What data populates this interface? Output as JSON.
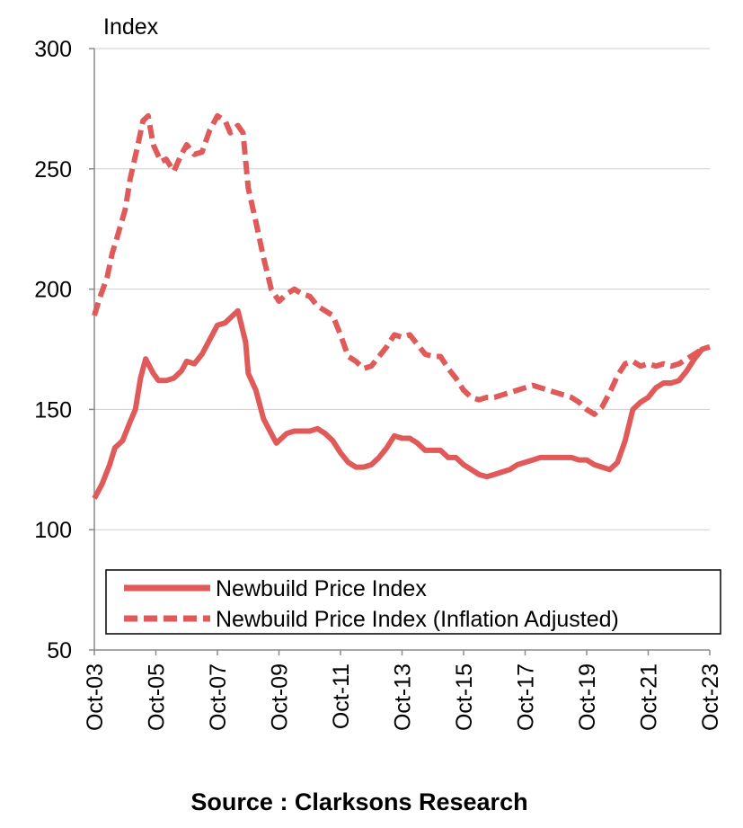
{
  "chart_data": {
    "type": "line",
    "ylabel": "Index",
    "ylim": [
      50,
      300
    ],
    "yticks": [
      50,
      100,
      150,
      200,
      250,
      300
    ],
    "xlim": [
      "Oct-03",
      "Oct-23"
    ],
    "xticks": [
      "Oct-03",
      "Oct-05",
      "Oct-07",
      "Oct-09",
      "Oct-11",
      "Oct-13",
      "Oct-15",
      "Oct-17",
      "Oct-19",
      "Oct-21",
      "Oct-23"
    ],
    "grid": "horizontal",
    "legend_position": "bottom",
    "series": [
      {
        "name": "Newbuild Price Index",
        "style": "solid",
        "color": "#e05a5a",
        "points": [
          [
            "2003-10",
            113
          ],
          [
            "2004-01",
            119
          ],
          [
            "2004-04",
            127
          ],
          [
            "2004-06",
            134
          ],
          [
            "2004-09",
            137
          ],
          [
            "2004-12",
            145
          ],
          [
            "2005-02",
            150
          ],
          [
            "2005-04",
            163
          ],
          [
            "2005-06",
            171
          ],
          [
            "2005-09",
            165
          ],
          [
            "2005-11",
            162
          ],
          [
            "2006-02",
            162
          ],
          [
            "2006-05",
            163
          ],
          [
            "2006-08",
            166
          ],
          [
            "2006-10",
            170
          ],
          [
            "2007-01",
            169
          ],
          [
            "2007-04",
            173
          ],
          [
            "2007-07",
            179
          ],
          [
            "2007-10",
            185
          ],
          [
            "2008-01",
            186
          ],
          [
            "2008-04",
            189
          ],
          [
            "2008-06",
            191
          ],
          [
            "2008-09",
            178
          ],
          [
            "2008-10",
            165
          ],
          [
            "2009-01",
            158
          ],
          [
            "2009-04",
            146
          ],
          [
            "2009-07",
            140
          ],
          [
            "2009-09",
            136
          ],
          [
            "2010-01",
            140
          ],
          [
            "2010-04",
            141
          ],
          [
            "2010-07",
            141
          ],
          [
            "2010-10",
            141
          ],
          [
            "2011-01",
            142
          ],
          [
            "2011-04",
            140
          ],
          [
            "2011-07",
            137
          ],
          [
            "2011-10",
            132
          ],
          [
            "2012-01",
            128
          ],
          [
            "2012-04",
            126
          ],
          [
            "2012-07",
            126
          ],
          [
            "2012-10",
            127
          ],
          [
            "2013-01",
            130
          ],
          [
            "2013-04",
            134
          ],
          [
            "2013-07",
            139
          ],
          [
            "2013-10",
            138
          ],
          [
            "2014-01",
            138
          ],
          [
            "2014-04",
            136
          ],
          [
            "2014-07",
            133
          ],
          [
            "2014-10",
            133
          ],
          [
            "2015-01",
            133
          ],
          [
            "2015-04",
            130
          ],
          [
            "2015-07",
            130
          ],
          [
            "2015-10",
            127
          ],
          [
            "2016-01",
            125
          ],
          [
            "2016-04",
            123
          ],
          [
            "2016-07",
            122
          ],
          [
            "2016-10",
            123
          ],
          [
            "2017-01",
            124
          ],
          [
            "2017-04",
            125
          ],
          [
            "2017-07",
            127
          ],
          [
            "2017-10",
            128
          ],
          [
            "2018-01",
            129
          ],
          [
            "2018-04",
            130
          ],
          [
            "2018-07",
            130
          ],
          [
            "2018-10",
            130
          ],
          [
            "2019-01",
            130
          ],
          [
            "2019-04",
            130
          ],
          [
            "2019-07",
            129
          ],
          [
            "2019-10",
            129
          ],
          [
            "2020-01",
            127
          ],
          [
            "2020-04",
            126
          ],
          [
            "2020-07",
            125
          ],
          [
            "2020-10",
            128
          ],
          [
            "2021-01",
            137
          ],
          [
            "2021-04",
            150
          ],
          [
            "2021-07",
            153
          ],
          [
            "2021-10",
            155
          ],
          [
            "2022-01",
            159
          ],
          [
            "2022-04",
            161
          ],
          [
            "2022-07",
            161
          ],
          [
            "2022-10",
            162
          ],
          [
            "2023-01",
            166
          ],
          [
            "2023-04",
            171
          ],
          [
            "2023-07",
            175
          ],
          [
            "2023-10",
            176
          ]
        ]
      },
      {
        "name": "Newbuild Price Index (Inflation Adjusted)",
        "style": "dashed",
        "color": "#e05a5a",
        "points": [
          [
            "2003-10",
            189
          ],
          [
            "2003-12",
            196
          ],
          [
            "2004-03",
            205
          ],
          [
            "2004-05",
            215
          ],
          [
            "2004-07",
            222
          ],
          [
            "2004-10",
            233
          ],
          [
            "2004-12",
            246
          ],
          [
            "2005-03",
            260
          ],
          [
            "2005-05",
            270
          ],
          [
            "2005-07",
            272
          ],
          [
            "2005-09",
            260
          ],
          [
            "2005-12",
            253
          ],
          [
            "2006-02",
            254
          ],
          [
            "2006-05",
            249
          ],
          [
            "2006-08",
            256
          ],
          [
            "2006-10",
            260
          ],
          [
            "2007-01",
            256
          ],
          [
            "2007-04",
            257
          ],
          [
            "2007-07",
            266
          ],
          [
            "2007-10",
            272
          ],
          [
            "2008-01",
            270
          ],
          [
            "2008-03",
            265
          ],
          [
            "2008-06",
            268
          ],
          [
            "2008-08",
            265
          ],
          [
            "2008-10",
            242
          ],
          [
            "2009-01",
            228
          ],
          [
            "2009-04",
            213
          ],
          [
            "2009-07",
            200
          ],
          [
            "2009-10",
            195
          ],
          [
            "2010-01",
            198
          ],
          [
            "2010-04",
            200
          ],
          [
            "2010-07",
            198
          ],
          [
            "2010-10",
            197
          ],
          [
            "2011-01",
            193
          ],
          [
            "2011-04",
            191
          ],
          [
            "2011-07",
            189
          ],
          [
            "2011-10",
            181
          ],
          [
            "2012-01",
            172
          ],
          [
            "2012-04",
            170
          ],
          [
            "2012-07",
            167
          ],
          [
            "2012-10",
            168
          ],
          [
            "2013-01",
            172
          ],
          [
            "2013-04",
            176
          ],
          [
            "2013-07",
            181
          ],
          [
            "2013-10",
            180
          ],
          [
            "2014-01",
            181
          ],
          [
            "2014-04",
            177
          ],
          [
            "2014-07",
            173
          ],
          [
            "2014-10",
            172
          ],
          [
            "2015-01",
            172
          ],
          [
            "2015-04",
            167
          ],
          [
            "2015-07",
            163
          ],
          [
            "2015-10",
            158
          ],
          [
            "2016-01",
            155
          ],
          [
            "2016-04",
            154
          ],
          [
            "2016-07",
            155
          ],
          [
            "2016-10",
            155
          ],
          [
            "2017-01",
            156
          ],
          [
            "2017-04",
            157
          ],
          [
            "2017-07",
            158
          ],
          [
            "2017-10",
            159
          ],
          [
            "2018-01",
            160
          ],
          [
            "2018-04",
            159
          ],
          [
            "2018-07",
            158
          ],
          [
            "2018-10",
            157
          ],
          [
            "2019-01",
            156
          ],
          [
            "2019-04",
            155
          ],
          [
            "2019-07",
            153
          ],
          [
            "2019-10",
            150
          ],
          [
            "2020-01",
            148
          ],
          [
            "2020-04",
            151
          ],
          [
            "2020-07",
            157
          ],
          [
            "2020-10",
            164
          ],
          [
            "2021-01",
            169
          ],
          [
            "2021-04",
            170
          ],
          [
            "2021-07",
            168
          ],
          [
            "2021-10",
            169
          ],
          [
            "2022-01",
            168
          ],
          [
            "2022-04",
            169
          ],
          [
            "2022-07",
            168
          ],
          [
            "2022-10",
            169
          ],
          [
            "2023-01",
            171
          ],
          [
            "2023-04",
            173
          ],
          [
            "2023-07",
            175
          ],
          [
            "2023-10",
            176
          ]
        ]
      }
    ]
  },
  "source": "Source : Clarksons Research"
}
